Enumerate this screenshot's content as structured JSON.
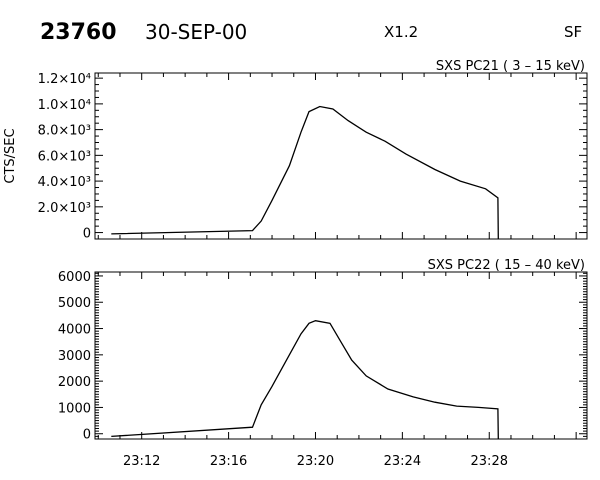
{
  "header": {
    "event_id": "23760",
    "date": "30-SEP-00",
    "class": "X1.2",
    "flag": "SF"
  },
  "chart_data": [
    {
      "type": "line",
      "title": "SXS PC21  (  3 – 15 keV)",
      "ylabel": "CTS/SEC",
      "xlabel": "",
      "xlim": [
        "23:09:51",
        "23:32:30"
      ],
      "ylim": [
        -500,
        12400
      ],
      "yticks": [
        0,
        2000,
        4000,
        6000,
        8000,
        10000,
        12000
      ],
      "ytick_labels": [
        "0",
        "2.0×10³",
        "4.0×10³",
        "6.0×10³",
        "8.0×10³",
        "1.0×10⁴",
        "1.2×10⁴"
      ],
      "xtick_labels_shown": false,
      "grid": false,
      "x": [
        "23:10:36",
        "23:17:06",
        "23:17:30",
        "23:18:00",
        "23:18:48",
        "23:19:20",
        "23:19:42",
        "23:20:12",
        "23:20:48",
        "23:21:30",
        "23:22:20",
        "23:23:12",
        "23:24:10",
        "23:25:30",
        "23:26:40",
        "23:27:50",
        "23:28:24",
        "23:28:25"
      ],
      "y": [
        -100,
        150,
        900,
        2500,
        5200,
        7800,
        9400,
        9800,
        9600,
        8700,
        7800,
        7100,
        6100,
        4900,
        4000,
        3400,
        2700,
        -500
      ]
    },
    {
      "type": "line",
      "title": "SXS PC22  ( 15 – 40 keV)",
      "ylabel": "",
      "xlabel": "",
      "xlim": [
        "23:09:51",
        "23:32:30"
      ],
      "ylim": [
        -200,
        6150
      ],
      "yticks": [
        0,
        1000,
        2000,
        3000,
        4000,
        5000,
        6000
      ],
      "ytick_labels": [
        "0",
        "1000",
        "2000",
        "3000",
        "4000",
        "5000",
        "6000"
      ],
      "xticks": [
        "23:12",
        "23:16",
        "23:20",
        "23:24",
        "23:28"
      ],
      "grid": false,
      "x": [
        "23:10:36",
        "23:17:06",
        "23:17:30",
        "23:18:00",
        "23:18:48",
        "23:19:20",
        "23:19:42",
        "23:20:00",
        "23:20:40",
        "23:21:10",
        "23:21:40",
        "23:22:20",
        "23:23:20",
        "23:24:30",
        "23:25:30",
        "23:26:30",
        "23:27:30",
        "23:28:24",
        "23:28:25"
      ],
      "y": [
        -100,
        250,
        1100,
        1800,
        3000,
        3800,
        4200,
        4300,
        4200,
        3500,
        2800,
        2200,
        1700,
        1400,
        1200,
        1050,
        1000,
        950,
        -200
      ]
    }
  ]
}
